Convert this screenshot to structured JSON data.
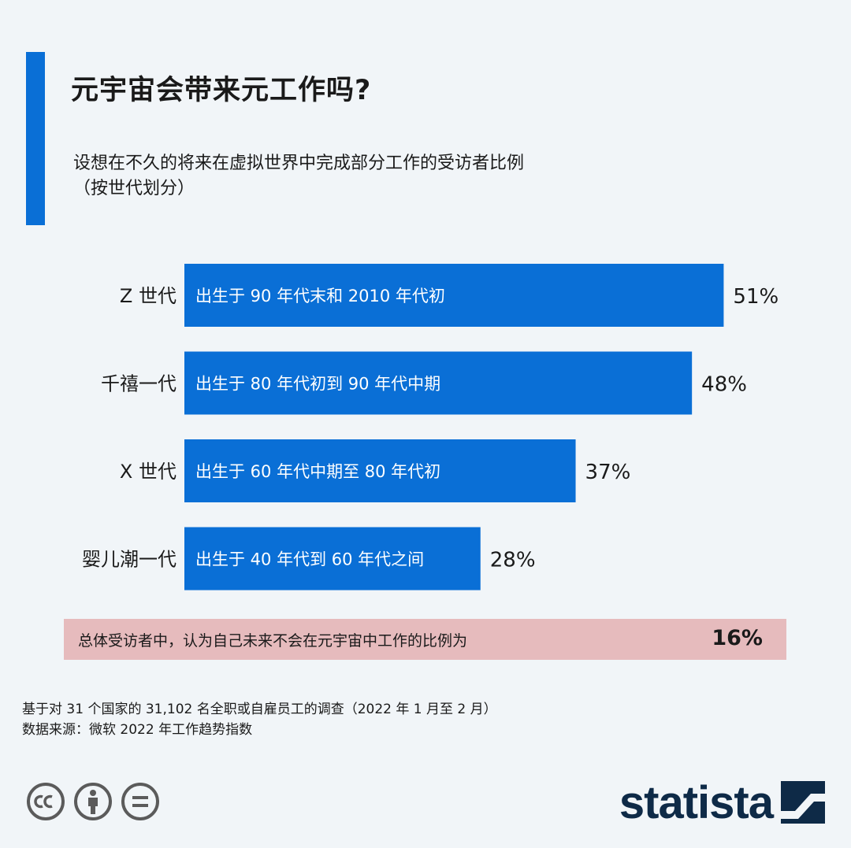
{
  "header": {
    "title": "元宇宙会带来元工作吗?",
    "subtitle_line1": "设想在不久的将来在虚拟世界中完成部分工作的受访者比例",
    "subtitle_line2": "（按世代划分）"
  },
  "chart_data": {
    "type": "bar",
    "orientation": "horizontal",
    "categories": [
      "Z 世代",
      "千禧一代",
      "X 世代",
      "婴儿潮一代"
    ],
    "bar_labels": [
      "出生于 90 年代末和 2010 年代初",
      "出生于 80 年代初到 90 年代中期",
      "出生于 60 年代中期至 80 年代初",
      "出生于 40 年代到 60 年代之间"
    ],
    "values": [
      51,
      48,
      37,
      28
    ],
    "value_labels": [
      "51%",
      "48%",
      "37%",
      "28%"
    ],
    "unit": "%",
    "bar_color": "#0a6fd6"
  },
  "callout": {
    "text": "总体受访者中，认为自己未来不会在元宇宙中工作的比例为",
    "value": "16%",
    "background": "#e6bbbd"
  },
  "footnote": {
    "line1": "基于对 31 个国家的 31,102 名全职或自雇员工的调查（2022 年 1 月至 2 月）",
    "line2": "数据来源：微软 2022 年工作趋势指数"
  },
  "license_icons": [
    "creative-commons-icon",
    "attribution-icon",
    "no-derivatives-icon"
  ],
  "brand": {
    "name": "statista",
    "color": "#0e2a47"
  }
}
